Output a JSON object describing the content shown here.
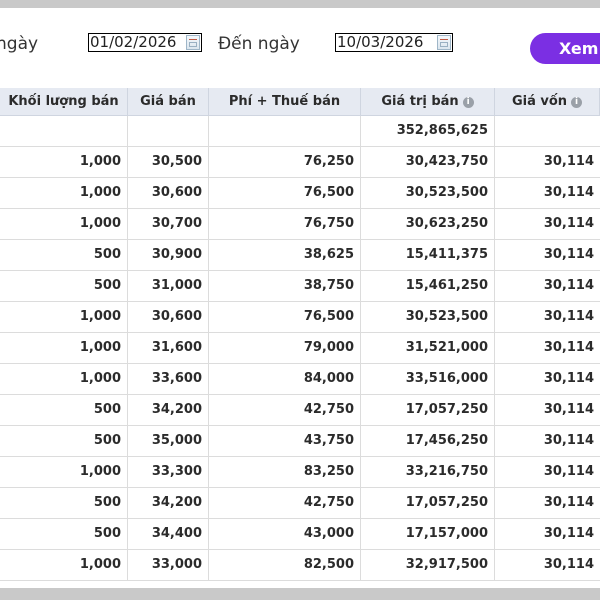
{
  "filter": {
    "from_label": "ngày",
    "from_date": "01/02/2026",
    "to_label": "Đến ngày",
    "to_date": "10/03/2026",
    "view_button": "Xem"
  },
  "table": {
    "columns": [
      "Khối lượng bán",
      "Giá bán",
      "Phí + Thuế bán",
      "Giá trị bán",
      "Giá vốn"
    ],
    "total_row": [
      "",
      "",
      "",
      "352,865,625",
      ""
    ],
    "rows": [
      [
        "1,000",
        "30,500",
        "76,250",
        "30,423,750",
        "30,114"
      ],
      [
        "1,000",
        "30,600",
        "76,500",
        "30,523,500",
        "30,114"
      ],
      [
        "1,000",
        "30,700",
        "76,750",
        "30,623,250",
        "30,114"
      ],
      [
        "500",
        "30,900",
        "38,625",
        "15,411,375",
        "30,114"
      ],
      [
        "500",
        "31,000",
        "38,750",
        "15,461,250",
        "30,114"
      ],
      [
        "1,000",
        "30,600",
        "76,500",
        "30,523,500",
        "30,114"
      ],
      [
        "1,000",
        "31,600",
        "79,000",
        "31,521,000",
        "30,114"
      ],
      [
        "1,000",
        "33,600",
        "84,000",
        "33,516,000",
        "30,114"
      ],
      [
        "500",
        "34,200",
        "42,750",
        "17,057,250",
        "30,114"
      ],
      [
        "500",
        "35,000",
        "43,750",
        "17,456,250",
        "30,114"
      ],
      [
        "1,000",
        "33,300",
        "83,250",
        "33,216,750",
        "30,114"
      ],
      [
        "500",
        "34,200",
        "42,750",
        "17,057,250",
        "30,114"
      ],
      [
        "500",
        "34,400",
        "43,000",
        "17,157,000",
        "30,114"
      ],
      [
        "1,000",
        "33,000",
        "82,500",
        "32,917,500",
        "30,114"
      ]
    ]
  },
  "colors": {
    "button_bg": "#7b2fe3",
    "header_bg": "#e6eaf2"
  },
  "icons": {
    "info": "info-icon",
    "calendar": "calendar-icon"
  }
}
